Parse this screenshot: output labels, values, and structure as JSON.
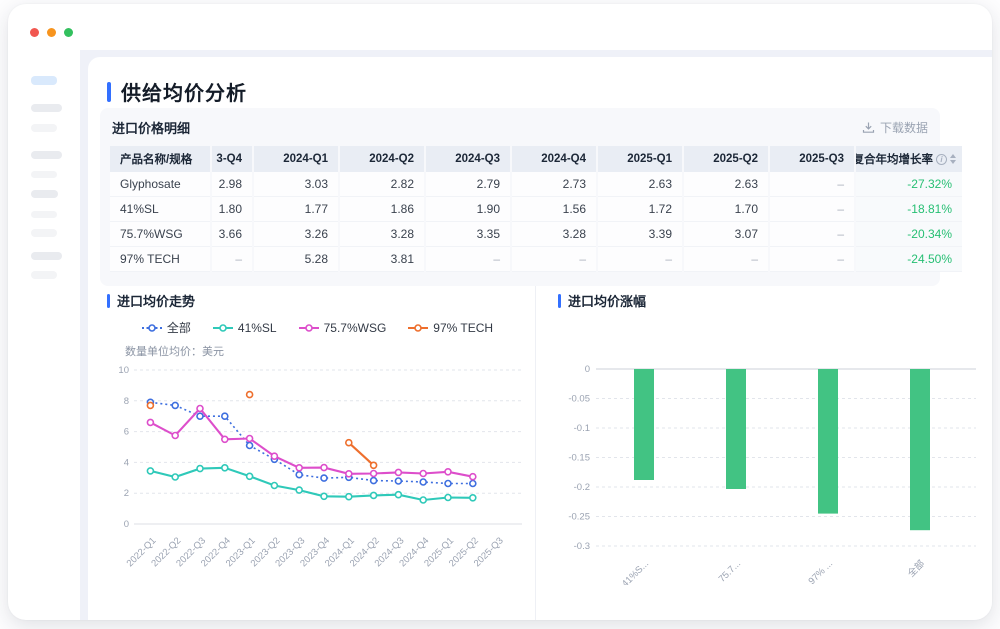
{
  "window": {
    "traffic_lights": {
      "close": "#f15750",
      "minimize": "#f7941e",
      "zoom": "#33c05e"
    }
  },
  "page": {
    "title": "供给均价分析"
  },
  "table_panel": {
    "title": "进口价格明细",
    "download_label": "下载数据",
    "columns": [
      "产品名称/规格",
      "3-Q4",
      "2024-Q1",
      "2024-Q2",
      "2024-Q3",
      "2024-Q4",
      "2025-Q1",
      "2025-Q2",
      "2025-Q3",
      "复合年均增长率"
    ],
    "rows": [
      {
        "name": "Glyphosate",
        "values": [
          "2.98",
          "3.03",
          "2.82",
          "2.79",
          "2.73",
          "2.63",
          "2.63",
          "–"
        ],
        "cagr": "-27.32%"
      },
      {
        "name": "41%SL",
        "values": [
          "1.80",
          "1.77",
          "1.86",
          "1.90",
          "1.56",
          "1.72",
          "1.70",
          "–"
        ],
        "cagr": "-18.81%"
      },
      {
        "name": "75.7%WSG",
        "values": [
          "3.66",
          "3.26",
          "3.28",
          "3.35",
          "3.28",
          "3.39",
          "3.07",
          "–"
        ],
        "cagr": "-20.34%"
      },
      {
        "name": "97% TECH",
        "values": [
          "–",
          "5.28",
          "3.81",
          "–",
          "–",
          "–",
          "–",
          "–"
        ],
        "cagr": "-24.50%"
      }
    ],
    "cagr_color": "#26bf73"
  },
  "charts": {
    "left_title": "进口均价走势",
    "right_title": "进口均价涨幅",
    "unit_note": "数量单位均价：美元"
  },
  "chart_data": [
    {
      "type": "line",
      "title": "进口均价走势",
      "unit_label": "数量单位均价：美元",
      "x": [
        "2022-Q1",
        "2022-Q2",
        "2022-Q3",
        "2022-Q4",
        "2023-Q1",
        "2023-Q2",
        "2023-Q3",
        "2023-Q4",
        "2024-Q1",
        "2024-Q2",
        "2024-Q3",
        "2024-Q4",
        "2025-Q1",
        "2025-Q2",
        "2025-Q3"
      ],
      "series": [
        {
          "name": "全部",
          "color": "#3e6fdf",
          "style": "dotted",
          "values": [
            7.9,
            7.7,
            7.0,
            7.0,
            5.1,
            4.2,
            3.2,
            2.98,
            3.03,
            2.82,
            2.79,
            2.73,
            2.63,
            2.63,
            null
          ]
        },
        {
          "name": "41%SL",
          "color": "#2fc9b9",
          "style": "solid",
          "values": [
            3.45,
            3.05,
            3.6,
            3.65,
            3.1,
            2.5,
            2.2,
            1.8,
            1.77,
            1.86,
            1.9,
            1.56,
            1.72,
            1.7,
            null
          ]
        },
        {
          "name": "75.7%WSG",
          "color": "#dd4ecb",
          "style": "solid",
          "values": [
            6.6,
            5.75,
            7.5,
            5.5,
            5.55,
            4.4,
            3.65,
            3.66,
            3.26,
            3.28,
            3.35,
            3.28,
            3.39,
            3.07,
            null
          ]
        },
        {
          "name": "97% TECH",
          "color": "#ee6f2d",
          "style": "solid",
          "values": [
            7.7,
            null,
            null,
            null,
            8.4,
            null,
            null,
            null,
            5.28,
            3.81,
            null,
            null,
            null,
            null,
            null
          ]
        }
      ],
      "ylim": [
        0,
        10
      ],
      "yticks": [
        "0",
        "2",
        "4",
        "6",
        "8",
        "10"
      ],
      "grid": true,
      "legend_position": "top"
    },
    {
      "type": "bar",
      "title": "进口均价涨幅",
      "categories": [
        "41%S...",
        "75.7...",
        "97% ...",
        "全部"
      ],
      "values": [
        -0.1881,
        -0.2034,
        -0.245,
        -0.2732
      ],
      "bar_color": "#42c383",
      "ylim": [
        -0.3,
        0
      ],
      "yticks": [
        "0",
        "-0.05",
        "-0.1",
        "-0.15",
        "-0.2",
        "-0.25",
        "-0.3"
      ],
      "grid": true
    }
  ]
}
